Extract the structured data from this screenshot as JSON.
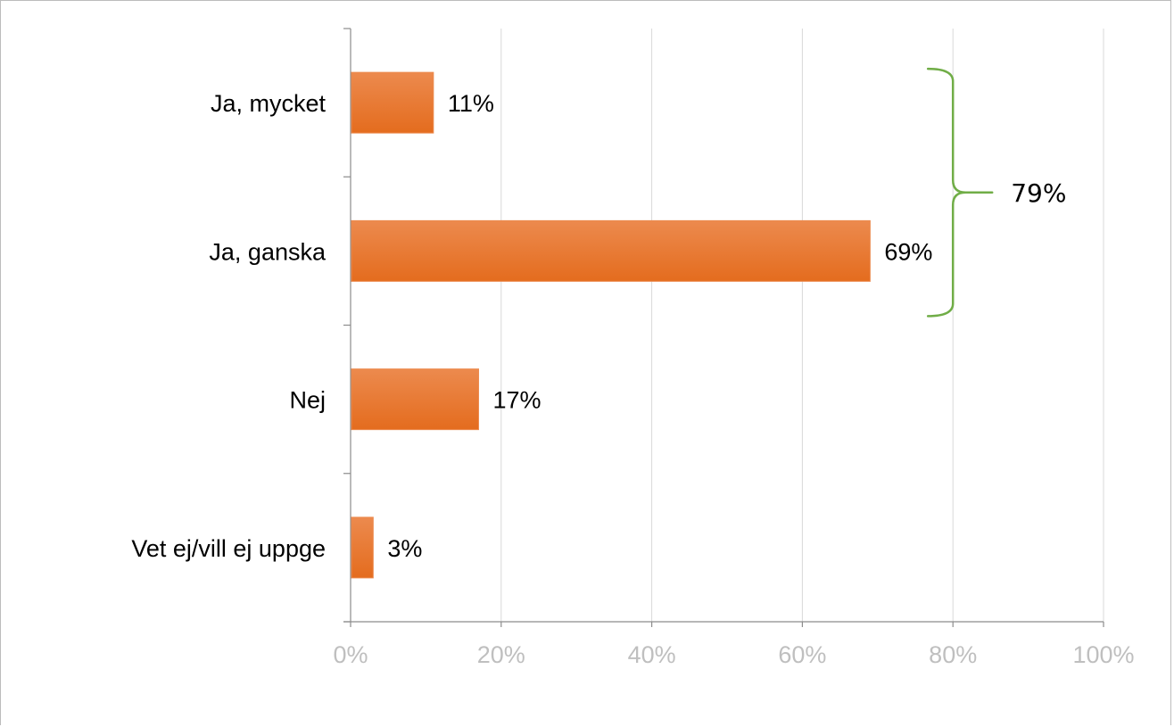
{
  "chart_data": {
    "type": "bar",
    "orientation": "horizontal",
    "categories": [
      "Ja, mycket",
      "Ja, ganska",
      "Nej",
      "Vet ej/vill ej uppge"
    ],
    "category_labels": [
      "Ja, mycket",
      "Ja, ganska",
      "Nej",
      "Vet ej/vill ej uppge"
    ],
    "values": [
      11,
      69,
      17,
      3
    ],
    "data_labels": [
      "11%",
      "69%",
      "17%",
      "3%"
    ],
    "xlim": [
      0,
      100
    ],
    "xticks": [
      0,
      20,
      40,
      60,
      80,
      100
    ],
    "tick_labels": [
      "0%",
      "20%",
      "40%",
      "60%",
      "80%",
      "100%"
    ],
    "grid": "vertical",
    "legend": "none",
    "bar_color": "#e46c1e",
    "bar_color_light": "#ec8a4e",
    "grid_color": "#d9d9d9",
    "axis_color": "#8c8c8c",
    "tick_label_color": "#bfbfbf",
    "annotation": {
      "type": "brace",
      "spans_categories": [
        "Ja, mycket",
        "Ja, ganska"
      ],
      "at_value": 80,
      "label": "79%",
      "color": "#70ad47"
    }
  }
}
